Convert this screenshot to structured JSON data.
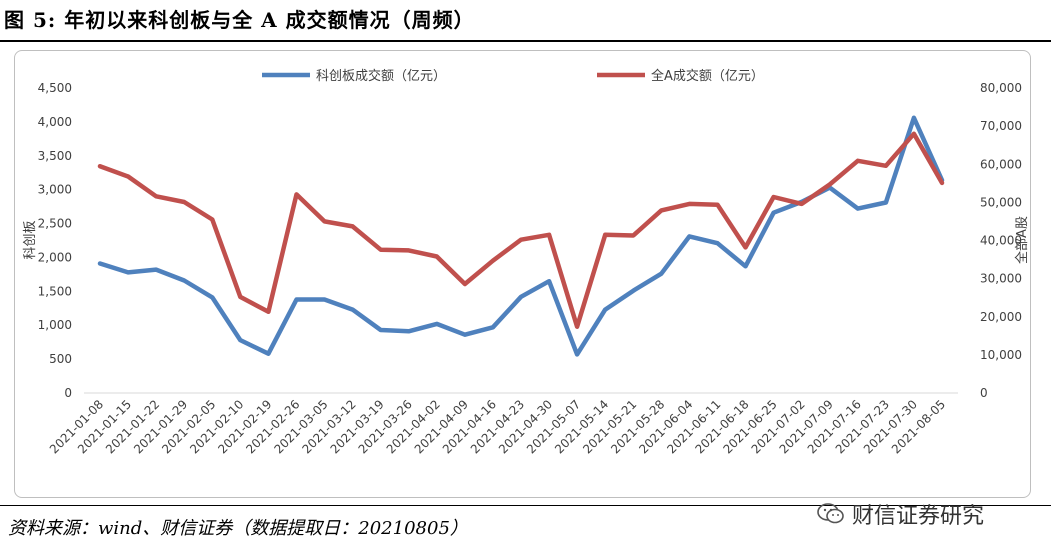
{
  "figure_title": "图 5:  年初以来科创板与全 A 成交额情况（周频）",
  "source_note": "资料来源：wind、财信证券（数据提取日：20210805）",
  "watermark": {
    "text": "财信证券研究",
    "icon": "wechat-icon"
  },
  "chart_data": {
    "type": "line",
    "title": "",
    "xlabel": "",
    "ylabel": "科创板",
    "y2label": "全部A股",
    "ylim": [
      0,
      4500
    ],
    "y2lim": [
      0,
      80000
    ],
    "yticks": [
      "0",
      "500",
      "1,000",
      "1,500",
      "2,000",
      "2,500",
      "3,000",
      "3,500",
      "4,000",
      "4,500"
    ],
    "y2ticks": [
      "0",
      "10,000",
      "20,000",
      "30,000",
      "40,000",
      "50,000",
      "60,000",
      "70,000",
      "80,000"
    ],
    "grid": false,
    "legend": "top",
    "categories": [
      "2021-01-08",
      "2021-01-15",
      "2021-01-22",
      "2021-01-29",
      "2021-02-05",
      "2021-02-10",
      "2021-02-19",
      "2021-02-26",
      "2021-03-05",
      "2021-03-12",
      "2021-03-19",
      "2021-03-26",
      "2021-04-02",
      "2021-04-09",
      "2021-04-16",
      "2021-04-23",
      "2021-04-30",
      "2021-05-07",
      "2021-05-14",
      "2021-05-21",
      "2021-05-28",
      "2021-06-04",
      "2021-06-11",
      "2021-06-18",
      "2021-06-25",
      "2021-07-02",
      "2021-07-09",
      "2021-07-16",
      "2021-07-23",
      "2021-07-30",
      "2021-08-05"
    ],
    "series": [
      {
        "name": "科创板成交额（亿元）",
        "axis": "left",
        "color": "#4f81bd",
        "values": [
          1910,
          1780,
          1820,
          1660,
          1410,
          780,
          580,
          1380,
          1380,
          1230,
          930,
          910,
          1020,
          860,
          970,
          1420,
          1650,
          570,
          1230,
          1510,
          1760,
          2310,
          2210,
          1870,
          2660,
          2820,
          3030,
          2720,
          2810,
          4060,
          3140
        ]
      },
      {
        "name": "全A成交额（亿元）",
        "axis": "right",
        "color": "#c0504d",
        "values": [
          59500,
          56800,
          51600,
          50100,
          45500,
          25200,
          21300,
          52100,
          45000,
          43700,
          37600,
          37400,
          35800,
          28600,
          34700,
          40200,
          41500,
          17400,
          41500,
          41300,
          47900,
          49600,
          49400,
          38200,
          51400,
          49600,
          54700,
          60900,
          59600,
          68000,
          55100
        ]
      }
    ]
  }
}
